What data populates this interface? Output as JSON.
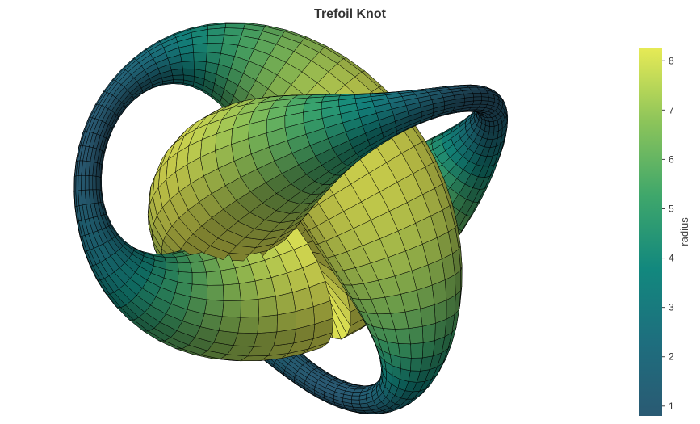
{
  "chart_data": {
    "type": "surface",
    "title": "Trefoil Knot",
    "colorscale": "viridis-like",
    "colorscale_stops": [
      {
        "t": 0.0,
        "color": "#2a5a73"
      },
      {
        "t": 0.2,
        "color": "#1e6e7e"
      },
      {
        "t": 0.4,
        "color": "#12887e"
      },
      {
        "t": 0.6,
        "color": "#3fa76b"
      },
      {
        "t": 0.8,
        "color": "#8cc45a"
      },
      {
        "t": 1.0,
        "color": "#e6ea56"
      }
    ],
    "colorbar": {
      "title": "radius",
      "min": 0.8,
      "max": 8.25,
      "ticks": [
        1,
        2,
        3,
        4,
        5,
        6,
        7,
        8
      ]
    },
    "surface_style": {
      "wireframe": true,
      "line_color": "#000000"
    },
    "axes_visible": false
  }
}
